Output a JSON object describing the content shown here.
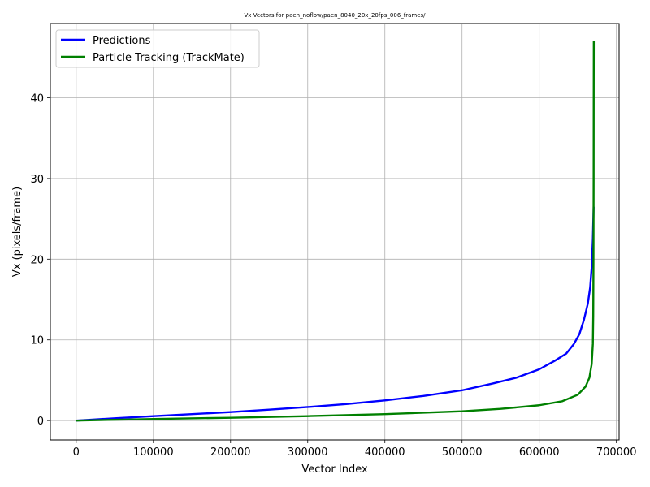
{
  "chart_data": {
    "type": "line",
    "title": "Vx Vectors for paen_noflow/paen_8040_20x_20fps_006_frames/",
    "xlabel": "Vector Index",
    "ylabel": "Vx (pixels/frame)",
    "xlim": [
      -33500,
      703500
    ],
    "ylim": [
      -2.4,
      49.2
    ],
    "xticks": [
      0,
      100000,
      200000,
      300000,
      400000,
      500000,
      600000,
      700000
    ],
    "yticks": [
      0,
      10,
      20,
      30,
      40
    ],
    "grid": true,
    "legend_position": "top-left",
    "series": [
      {
        "name": "Predictions",
        "color": "#0000ff",
        "x": [
          0,
          50000,
          100000,
          150000,
          200000,
          250000,
          300000,
          350000,
          400000,
          450000,
          500000,
          540000,
          570000,
          600000,
          620000,
          635000,
          645000,
          652000,
          658000,
          663000,
          666000,
          668000,
          669500,
          670500
        ],
        "y": [
          0,
          0.28,
          0.55,
          0.8,
          1.05,
          1.35,
          1.68,
          2.05,
          2.5,
          3.05,
          3.75,
          4.6,
          5.3,
          6.35,
          7.4,
          8.3,
          9.5,
          10.7,
          12.5,
          14.5,
          16.5,
          19.0,
          22.5,
          26.5
        ]
      },
      {
        "name": "Particle Tracking (TrackMate)",
        "color": "#008000",
        "x": [
          0,
          100000,
          200000,
          300000,
          400000,
          500000,
          550000,
          600000,
          630000,
          650000,
          660000,
          665000,
          668000,
          669500,
          670000,
          670300,
          670500,
          670600,
          670700
        ],
        "y": [
          0,
          0.2,
          0.35,
          0.55,
          0.8,
          1.15,
          1.45,
          1.9,
          2.4,
          3.2,
          4.2,
          5.3,
          7.0,
          9.5,
          13.0,
          20.0,
          30.0,
          40.0,
          47.0
        ]
      }
    ]
  }
}
